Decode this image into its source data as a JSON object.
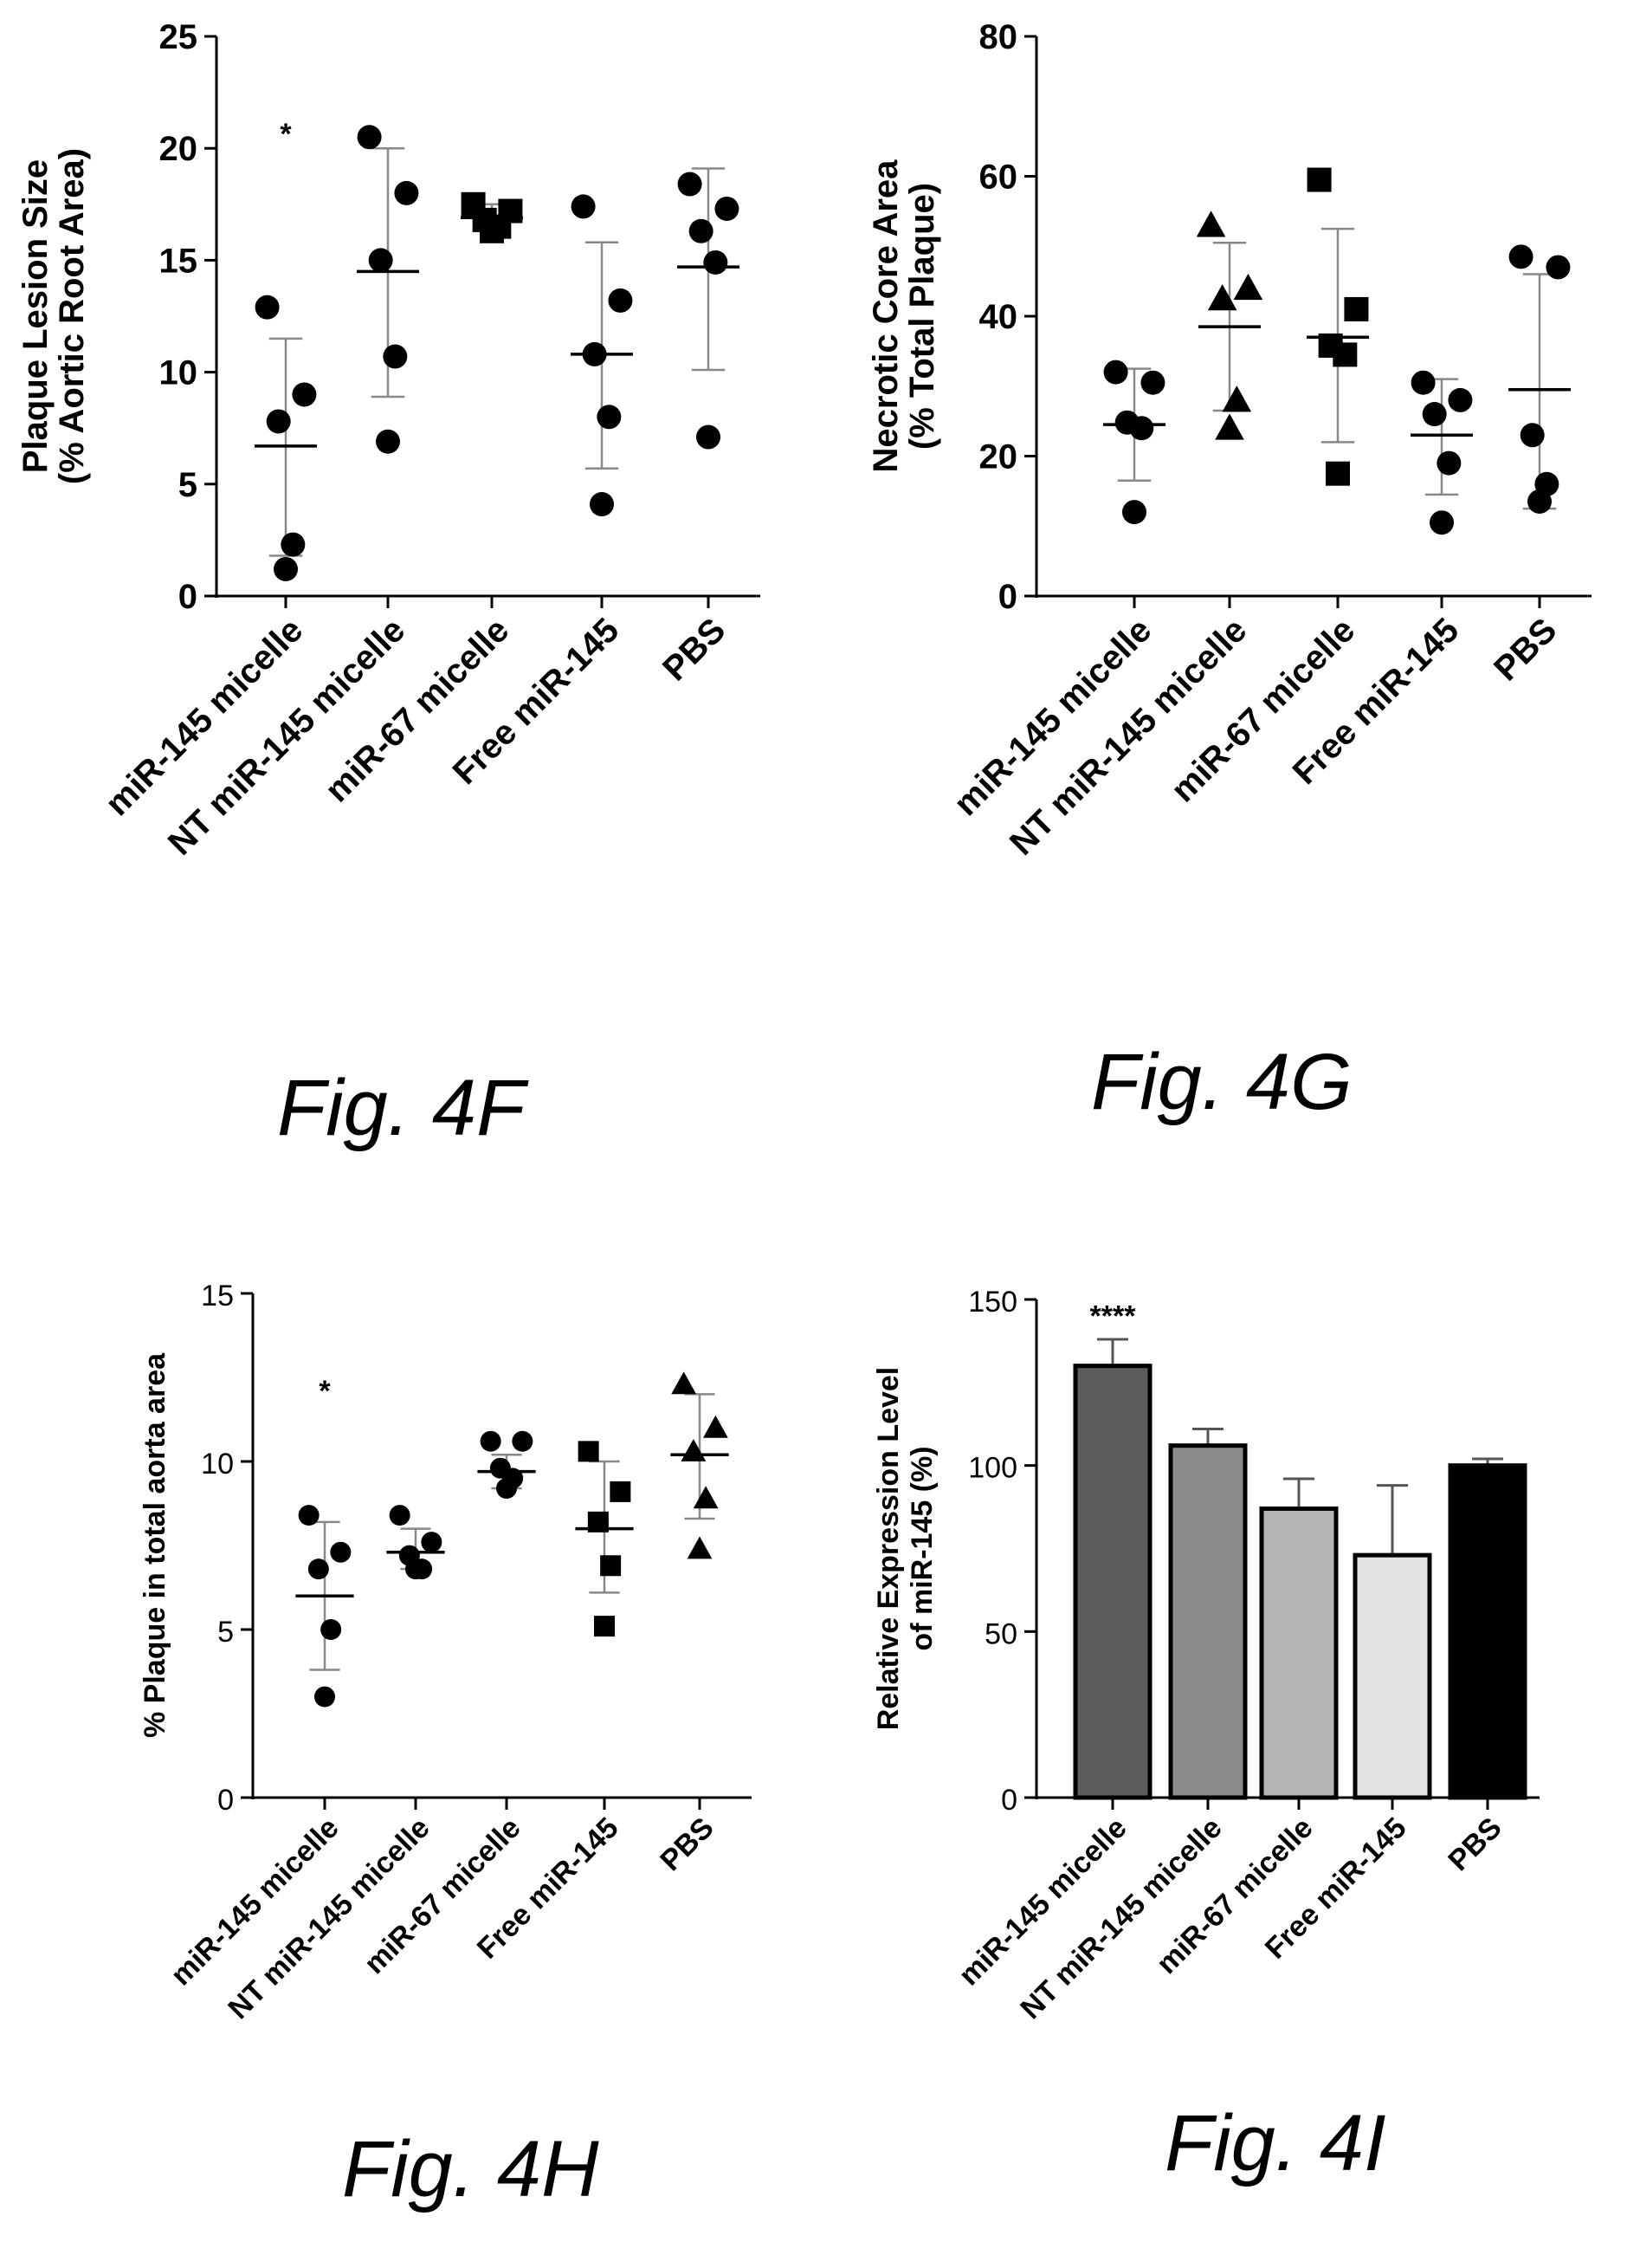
{
  "figures": {
    "f": "Fig. 4F",
    "g": "Fig. 4G",
    "h": "Fig. 4H",
    "i": "Fig. 4I"
  },
  "chart_data": [
    {
      "id": "f",
      "type": "scatter",
      "ylabel": "Plaque Lesion Size",
      "ylabel2": "(% Aortic Root Area)",
      "ylim": [
        0,
        25
      ],
      "yticks": [
        0,
        5,
        10,
        15,
        20,
        25
      ],
      "categories": [
        "miR-145 micelle",
        "NT miR-145 micelle",
        "miR-67 micelle",
        "Free miR-145",
        "PBS"
      ],
      "markers": [
        "circle",
        "circle",
        "square",
        "circle",
        "circle"
      ],
      "points": [
        [
          12.9,
          9.0,
          7.8,
          2.3,
          1.2
        ],
        [
          20.5,
          18.0,
          15.0,
          10.7,
          6.9
        ],
        [
          17.5,
          17.2,
          16.8,
          16.5,
          16.3
        ],
        [
          17.4,
          13.2,
          10.8,
          8.0,
          4.1
        ],
        [
          18.4,
          17.3,
          16.3,
          14.9,
          7.1
        ]
      ],
      "mean": [
        6.7,
        14.5,
        16.9,
        10.8,
        14.7
      ],
      "err": [
        [
          1.8,
          11.5
        ],
        [
          8.9,
          20.0
        ],
        [
          16.3,
          17.5
        ],
        [
          5.7,
          15.8
        ],
        [
          10.1,
          19.1
        ]
      ],
      "annotations": [
        {
          "category": "miR-145 micelle",
          "text": "*",
          "y": 20.2
        }
      ]
    },
    {
      "id": "g",
      "type": "scatter",
      "ylabel": "Necrotic Core Area",
      "ylabel2": "(% Total Plaque)",
      "ylim": [
        0,
        80
      ],
      "yticks": [
        0,
        20,
        40,
        60,
        80
      ],
      "categories": [
        "miR-145 micelle",
        "NT miR-145 micelle",
        "miR-67 micelle",
        "Free miR-145",
        "PBS"
      ],
      "markers": [
        "circle",
        "triangle",
        "square",
        "circle",
        "circle"
      ],
      "points": [
        [
          32.0,
          30.5,
          24.8,
          24.0,
          12.0
        ],
        [
          53.0,
          44.0,
          42.5,
          28.0,
          24.0
        ],
        [
          59.5,
          41.0,
          35.8,
          34.5,
          17.5
        ],
        [
          30.5,
          28.0,
          26.0,
          19.0,
          10.5
        ],
        [
          48.5,
          47.0,
          23.0,
          16.0,
          13.5
        ]
      ],
      "mean": [
        24.5,
        38.5,
        37.0,
        23.0,
        29.5
      ],
      "err": [
        [
          16.5,
          32.5
        ],
        [
          26.5,
          50.5
        ],
        [
          22.0,
          52.5
        ],
        [
          14.5,
          31.0
        ],
        [
          12.5,
          46.0
        ]
      ],
      "annotations": []
    },
    {
      "id": "h",
      "type": "scatter",
      "ylabel": "% Plaque in total aorta area",
      "ylim": [
        0,
        15
      ],
      "yticks": [
        0,
        5,
        10,
        15
      ],
      "categories": [
        "miR-145 micelle",
        "NT miR-145 micelle",
        "miR-67 micelle",
        "Free miR-145",
        "PBS"
      ],
      "markers": [
        "circle",
        "circle",
        "circle",
        "square",
        "triangle"
      ],
      "points": [
        [
          8.4,
          7.3,
          6.8,
          5.0,
          3.0
        ],
        [
          8.4,
          7.6,
          7.2,
          6.8,
          6.8
        ],
        [
          10.6,
          10.6,
          9.8,
          9.5,
          9.2
        ],
        [
          10.3,
          9.1,
          8.2,
          6.9,
          5.1
        ],
        [
          12.3,
          11.0,
          10.3,
          8.9,
          7.4
        ]
      ],
      "mean": [
        6.0,
        7.3,
        9.7,
        8.0,
        10.2
      ],
      "err": [
        [
          3.8,
          8.2
        ],
        [
          6.8,
          8.0
        ],
        [
          9.2,
          10.2
        ],
        [
          6.1,
          10.0
        ],
        [
          8.3,
          12.0
        ]
      ],
      "annotations": [
        {
          "category": "miR-145 micelle",
          "text": "*",
          "y": 11.8
        }
      ]
    },
    {
      "id": "i",
      "type": "bar",
      "ylabel": "Relative Expression Level",
      "ylabel2": "of miR-145 (%)",
      "ylim": [
        0,
        150
      ],
      "yticks": [
        0,
        50,
        100,
        150
      ],
      "categories": [
        "miR-145 micelle",
        "NT miR-145 micelle",
        "miR-67 micelle",
        "Free miR-145",
        "PBS"
      ],
      "values": [
        130,
        106,
        87,
        73,
        100
      ],
      "err_upper": [
        138,
        111,
        96,
        94,
        102
      ],
      "colors": [
        "#5c5c5c",
        "#8c8c8c",
        "#b3b3b3",
        "#e3e3e3",
        "#000000"
      ],
      "annotations": [
        {
          "category": "miR-145 micelle",
          "text": "****",
          "y": 142
        }
      ]
    }
  ]
}
